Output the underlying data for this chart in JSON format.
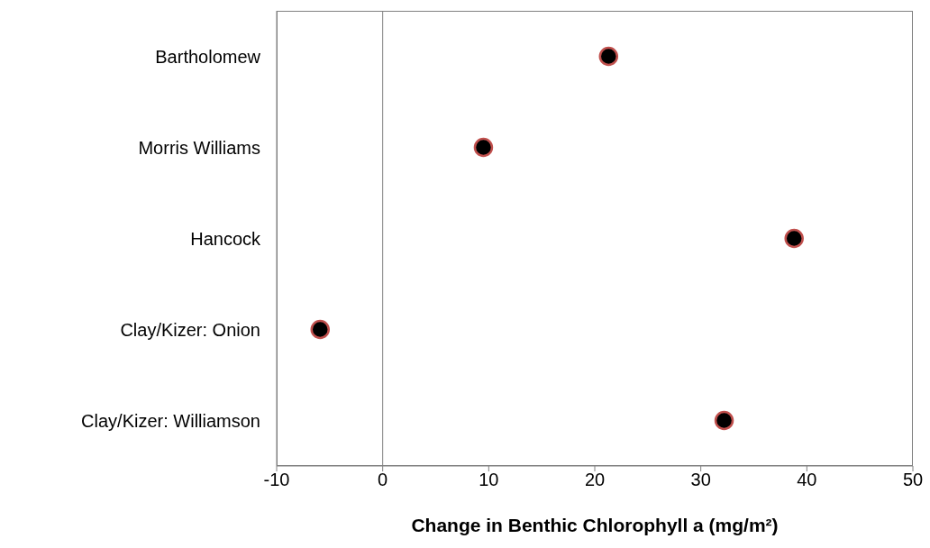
{
  "chart_data": {
    "type": "scatter",
    "orientation": "horizontal",
    "xlabel": "Change in Benthic Chlorophyll a (mg/m²)",
    "categories": [
      "Bartholomew",
      "Morris Williams",
      "Hancock",
      "Clay/Kizer: Onion",
      "Clay/Kizer: Williamson"
    ],
    "values": [
      21.3,
      9.5,
      38.8,
      -5.9,
      32.2
    ],
    "color": "#000000",
    "marker": "circle",
    "xlim": [
      -10,
      50
    ],
    "xticks": [
      -10,
      0,
      10,
      20,
      30,
      40,
      50
    ],
    "ref_lines": [
      {
        "axis": "x",
        "value": 0,
        "color": "#808080"
      }
    ]
  }
}
